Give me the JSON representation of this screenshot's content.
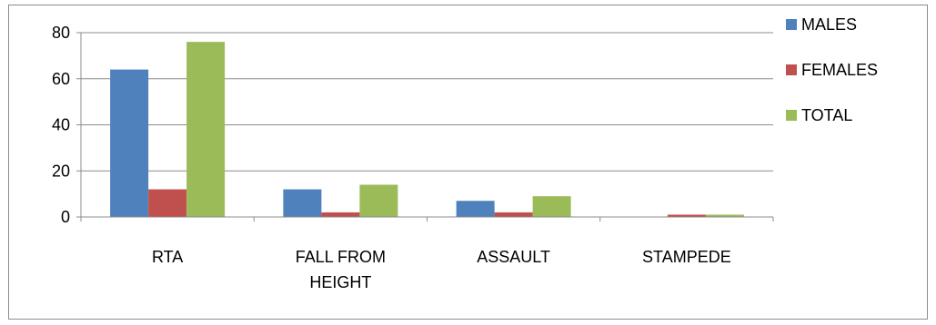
{
  "chart_data": {
    "type": "bar",
    "categories": [
      "RTA",
      "FALL FROM HEIGHT",
      "ASSAULT",
      "STAMPEDE"
    ],
    "series": [
      {
        "name": "MALES",
        "values": [
          64,
          12,
          7,
          0
        ],
        "color": "#4f81bd"
      },
      {
        "name": "FEMALES",
        "values": [
          12,
          2,
          2,
          1
        ],
        "color": "#c0504d"
      },
      {
        "name": "TOTAL",
        "values": [
          76,
          14,
          9,
          1
        ],
        "color": "#9bbb59"
      }
    ],
    "y_ticks": [
      "0",
      "20",
      "40",
      "60",
      "80"
    ],
    "ylim": [
      0,
      80
    ],
    "grid": true,
    "legend_position": "right"
  }
}
